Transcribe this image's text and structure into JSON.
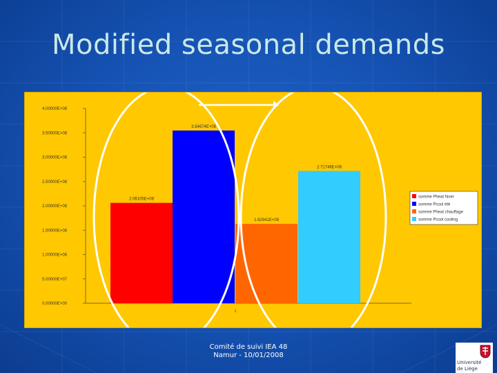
{
  "slide": {
    "title": "Modified seasonal demands",
    "footer_line1": "Comité de suivi IEA 48",
    "footer_line2": "Namur - 10/01/2008",
    "logo_line1": "Université",
    "logo_line2": "de Liège"
  },
  "chart_data": {
    "type": "bar",
    "categories": [
      "1"
    ],
    "series": [
      {
        "name": "somme Pheat hiver",
        "values": [
          206105000
        ],
        "color": "#ff0000",
        "label": "2.06105E+08"
      },
      {
        "name": "somme Pcool été",
        "values": [
          354674000
        ],
        "color": "#0000ff",
        "label": "3.54674E+08"
      },
      {
        "name": "somme Pheat chauffage",
        "values": [
          162941000
        ],
        "color": "#ff6600",
        "label": "1.62941E+08"
      },
      {
        "name": "somme Pcool cooling",
        "values": [
          271746000
        ],
        "color": "#33ccff",
        "label": "2.71746E+08"
      }
    ],
    "ylim": [
      0,
      400000000
    ],
    "yticks": [
      "0.00000E+00",
      "5.00000E+07",
      "1.00000E+08",
      "1.50000E+08",
      "2.00000E+08",
      "2.50000E+08",
      "3.00000E+08",
      "3.50000E+08",
      "4.00000E+08"
    ],
    "legend_position": "right",
    "grid": false,
    "colors": {
      "panel": "#ffc800",
      "annotation": "#ffffff"
    }
  }
}
